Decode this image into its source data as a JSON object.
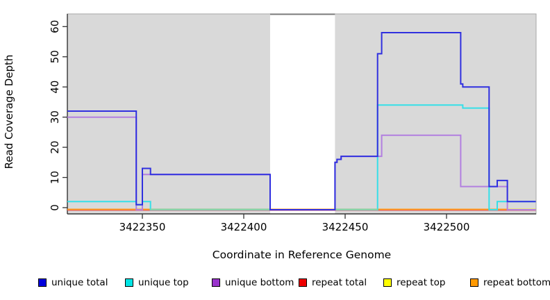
{
  "chart_data": {
    "type": "step-line",
    "title": "",
    "xlabel": "Coordinate in Reference Genome",
    "ylabel": "Read Coverage Depth",
    "x_ticks": [
      3422350,
      3422400,
      3422450,
      3422500
    ],
    "y_ticks": [
      0,
      10,
      20,
      30,
      40,
      50,
      60
    ],
    "xlim": [
      3422313,
      3422544
    ],
    "ylim": [
      0,
      63
    ],
    "grid": false,
    "plot_background": "#d9d9d9",
    "highlight_region": {
      "from": 3422413,
      "to": 3422445,
      "color": "#ffffff"
    },
    "series": [
      {
        "name": "repeat total",
        "key": "repeat-total",
        "color": "#e04f68",
        "zero_offset": 3.5,
        "steps": [
          [
            3422313,
            0
          ]
        ],
        "end": 3422544
      },
      {
        "name": "repeat top",
        "key": "repeat-top",
        "color": "#f2f224",
        "zero_offset": 2.5,
        "steps": [
          [
            3422313,
            0
          ]
        ],
        "end": 3422544
      },
      {
        "name": "repeat bottom",
        "key": "repeat-bottom",
        "color": "#ff9a1a",
        "zero_offset": 2.5,
        "steps": [
          [
            3422313,
            0
          ]
        ],
        "end": 3422530
      },
      {
        "name": "unique bottom",
        "key": "unique-bottom",
        "color": "#b27fe0",
        "zero_offset": 3,
        "steps": [
          [
            3422313,
            30
          ],
          [
            3422347,
            0
          ],
          [
            3422350,
            11
          ],
          [
            3422413,
            0
          ],
          [
            3422445,
            15
          ],
          [
            3422446,
            16
          ],
          [
            3422448,
            17
          ],
          [
            3422468,
            24
          ],
          [
            3422507,
            7
          ],
          [
            3422530,
            0
          ]
        ],
        "end": 3422544
      },
      {
        "name": "unique top",
        "key": "unique-top",
        "color": "#35dfe8",
        "zero_offset": 3,
        "steps": [
          [
            3422313,
            2
          ],
          [
            3422347,
            1
          ],
          [
            3422350,
            2
          ],
          [
            3422354,
            0
          ],
          [
            3422466,
            34
          ],
          [
            3422508,
            33
          ],
          [
            3422521,
            0
          ],
          [
            3422525,
            2
          ]
        ],
        "end": 3422544
      },
      {
        "name": "unique total",
        "key": "unique-total",
        "color": "#3030df",
        "zero_offset": 3,
        "steps": [
          [
            3422313,
            32
          ],
          [
            3422347,
            1
          ],
          [
            3422350,
            13
          ],
          [
            3422354,
            11
          ],
          [
            3422413,
            0
          ],
          [
            3422445,
            15
          ],
          [
            3422446,
            16
          ],
          [
            3422448,
            17
          ],
          [
            3422466,
            51
          ],
          [
            3422468,
            58
          ],
          [
            3422507,
            41
          ],
          [
            3422508,
            40
          ],
          [
            3422521,
            7
          ],
          [
            3422525,
            9
          ],
          [
            3422530,
            2
          ]
        ],
        "end": 3422544
      }
    ],
    "baseline_blend_segments": [
      {
        "from": 3422354,
        "to": 3422413,
        "color": "#95cf9e"
      },
      {
        "from": 3422445,
        "to": 3422466,
        "color": "#95cf9e"
      }
    ],
    "legend_position": "bottom"
  },
  "legend": {
    "items": [
      {
        "label": "unique total",
        "color": "#0000dd"
      },
      {
        "label": "unique top",
        "color": "#00e5e5"
      },
      {
        "label": "unique bottom",
        "color": "#9933cc"
      },
      {
        "label": "repeat total",
        "color": "#ee0000"
      },
      {
        "label": "repeat top",
        "color": "#ffff00"
      },
      {
        "label": "repeat bottom",
        "color": "#ff9900"
      }
    ]
  }
}
